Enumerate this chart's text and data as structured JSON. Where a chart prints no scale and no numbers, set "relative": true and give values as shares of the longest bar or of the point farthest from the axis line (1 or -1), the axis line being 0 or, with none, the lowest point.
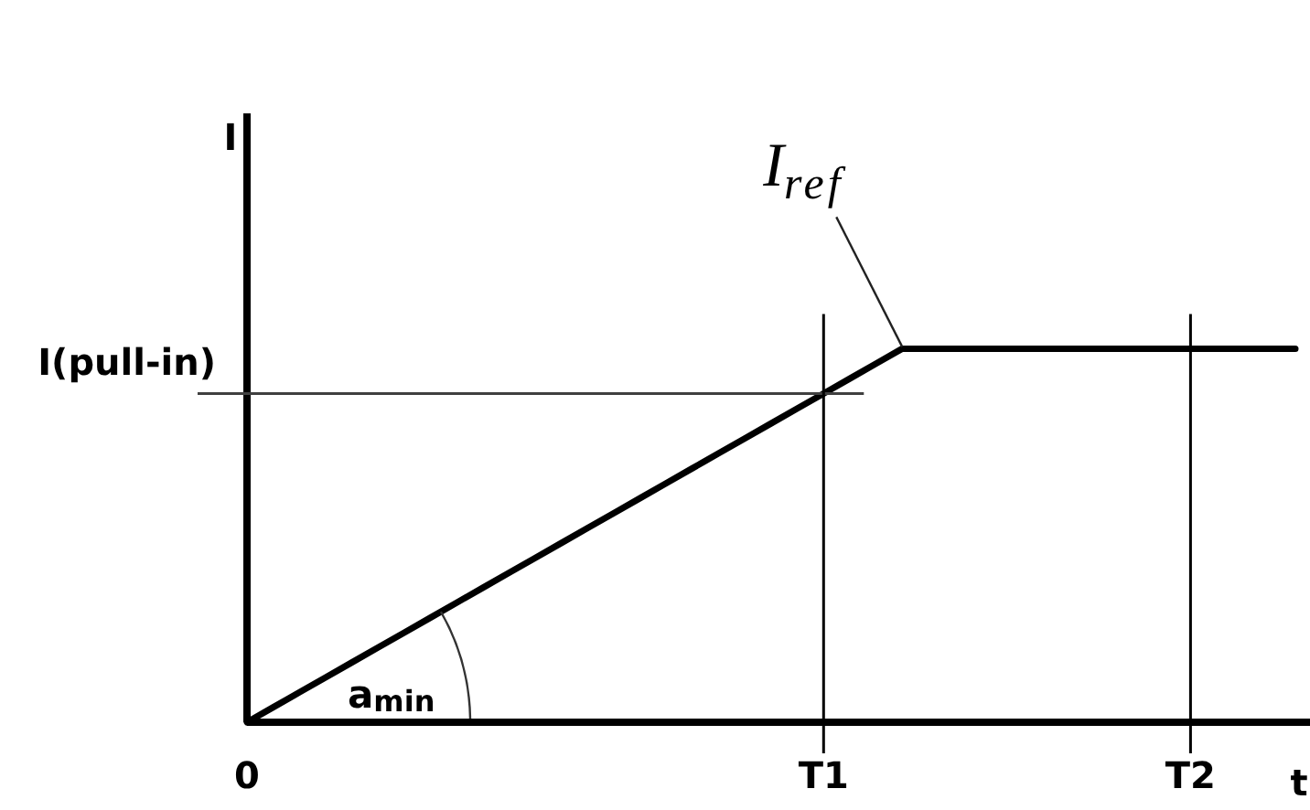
{
  "chart_data": {
    "type": "line",
    "relative": true,
    "xlabel": "t",
    "categories": [
      "0",
      null,
      null,
      null,
      null,
      null,
      null,
      null,
      null,
      null,
      null,
      null,
      null,
      null,
      null,
      null,
      null,
      null,
      null,
      null,
      null,
      null,
      "T1",
      null,
      null,
      null,
      null,
      null,
      null,
      null,
      null,
      null,
      null,
      null,
      null,
      null,
      "T2",
      null,
      null,
      null,
      null
    ],
    "series": [
      {
        "color": "#000000",
        "values": [
          0,
          0.04,
          0.08,
          0.12,
          0.16,
          0.2,
          0.24,
          0.28,
          0.32,
          0.36,
          0.4,
          0.44,
          0.48,
          0.52,
          0.56,
          0.6,
          0.64,
          0.68,
          0.72,
          0.76,
          0.8,
          0.84,
          0.88,
          0.92,
          0.96,
          1,
          1,
          1,
          1,
          1,
          1,
          1,
          1,
          1,
          1,
          1,
          1,
          1,
          1,
          1,
          1
        ]
      }
    ],
    "ref_lines": [
      {
        "axis": "y",
        "value": 0.88,
        "label": "I(pull-in)",
        "color": "#404040"
      },
      {
        "axis": "x",
        "value": "T1",
        "color": "#000000"
      },
      {
        "axis": "x",
        "value": "T2",
        "color": "#000000"
      }
    ],
    "annotations": [
      "I",
      "I$_{ref}$",
      {
        "text": "a$_{min}$",
        "x": "0",
        "y": 0
      }
    ]
  }
}
